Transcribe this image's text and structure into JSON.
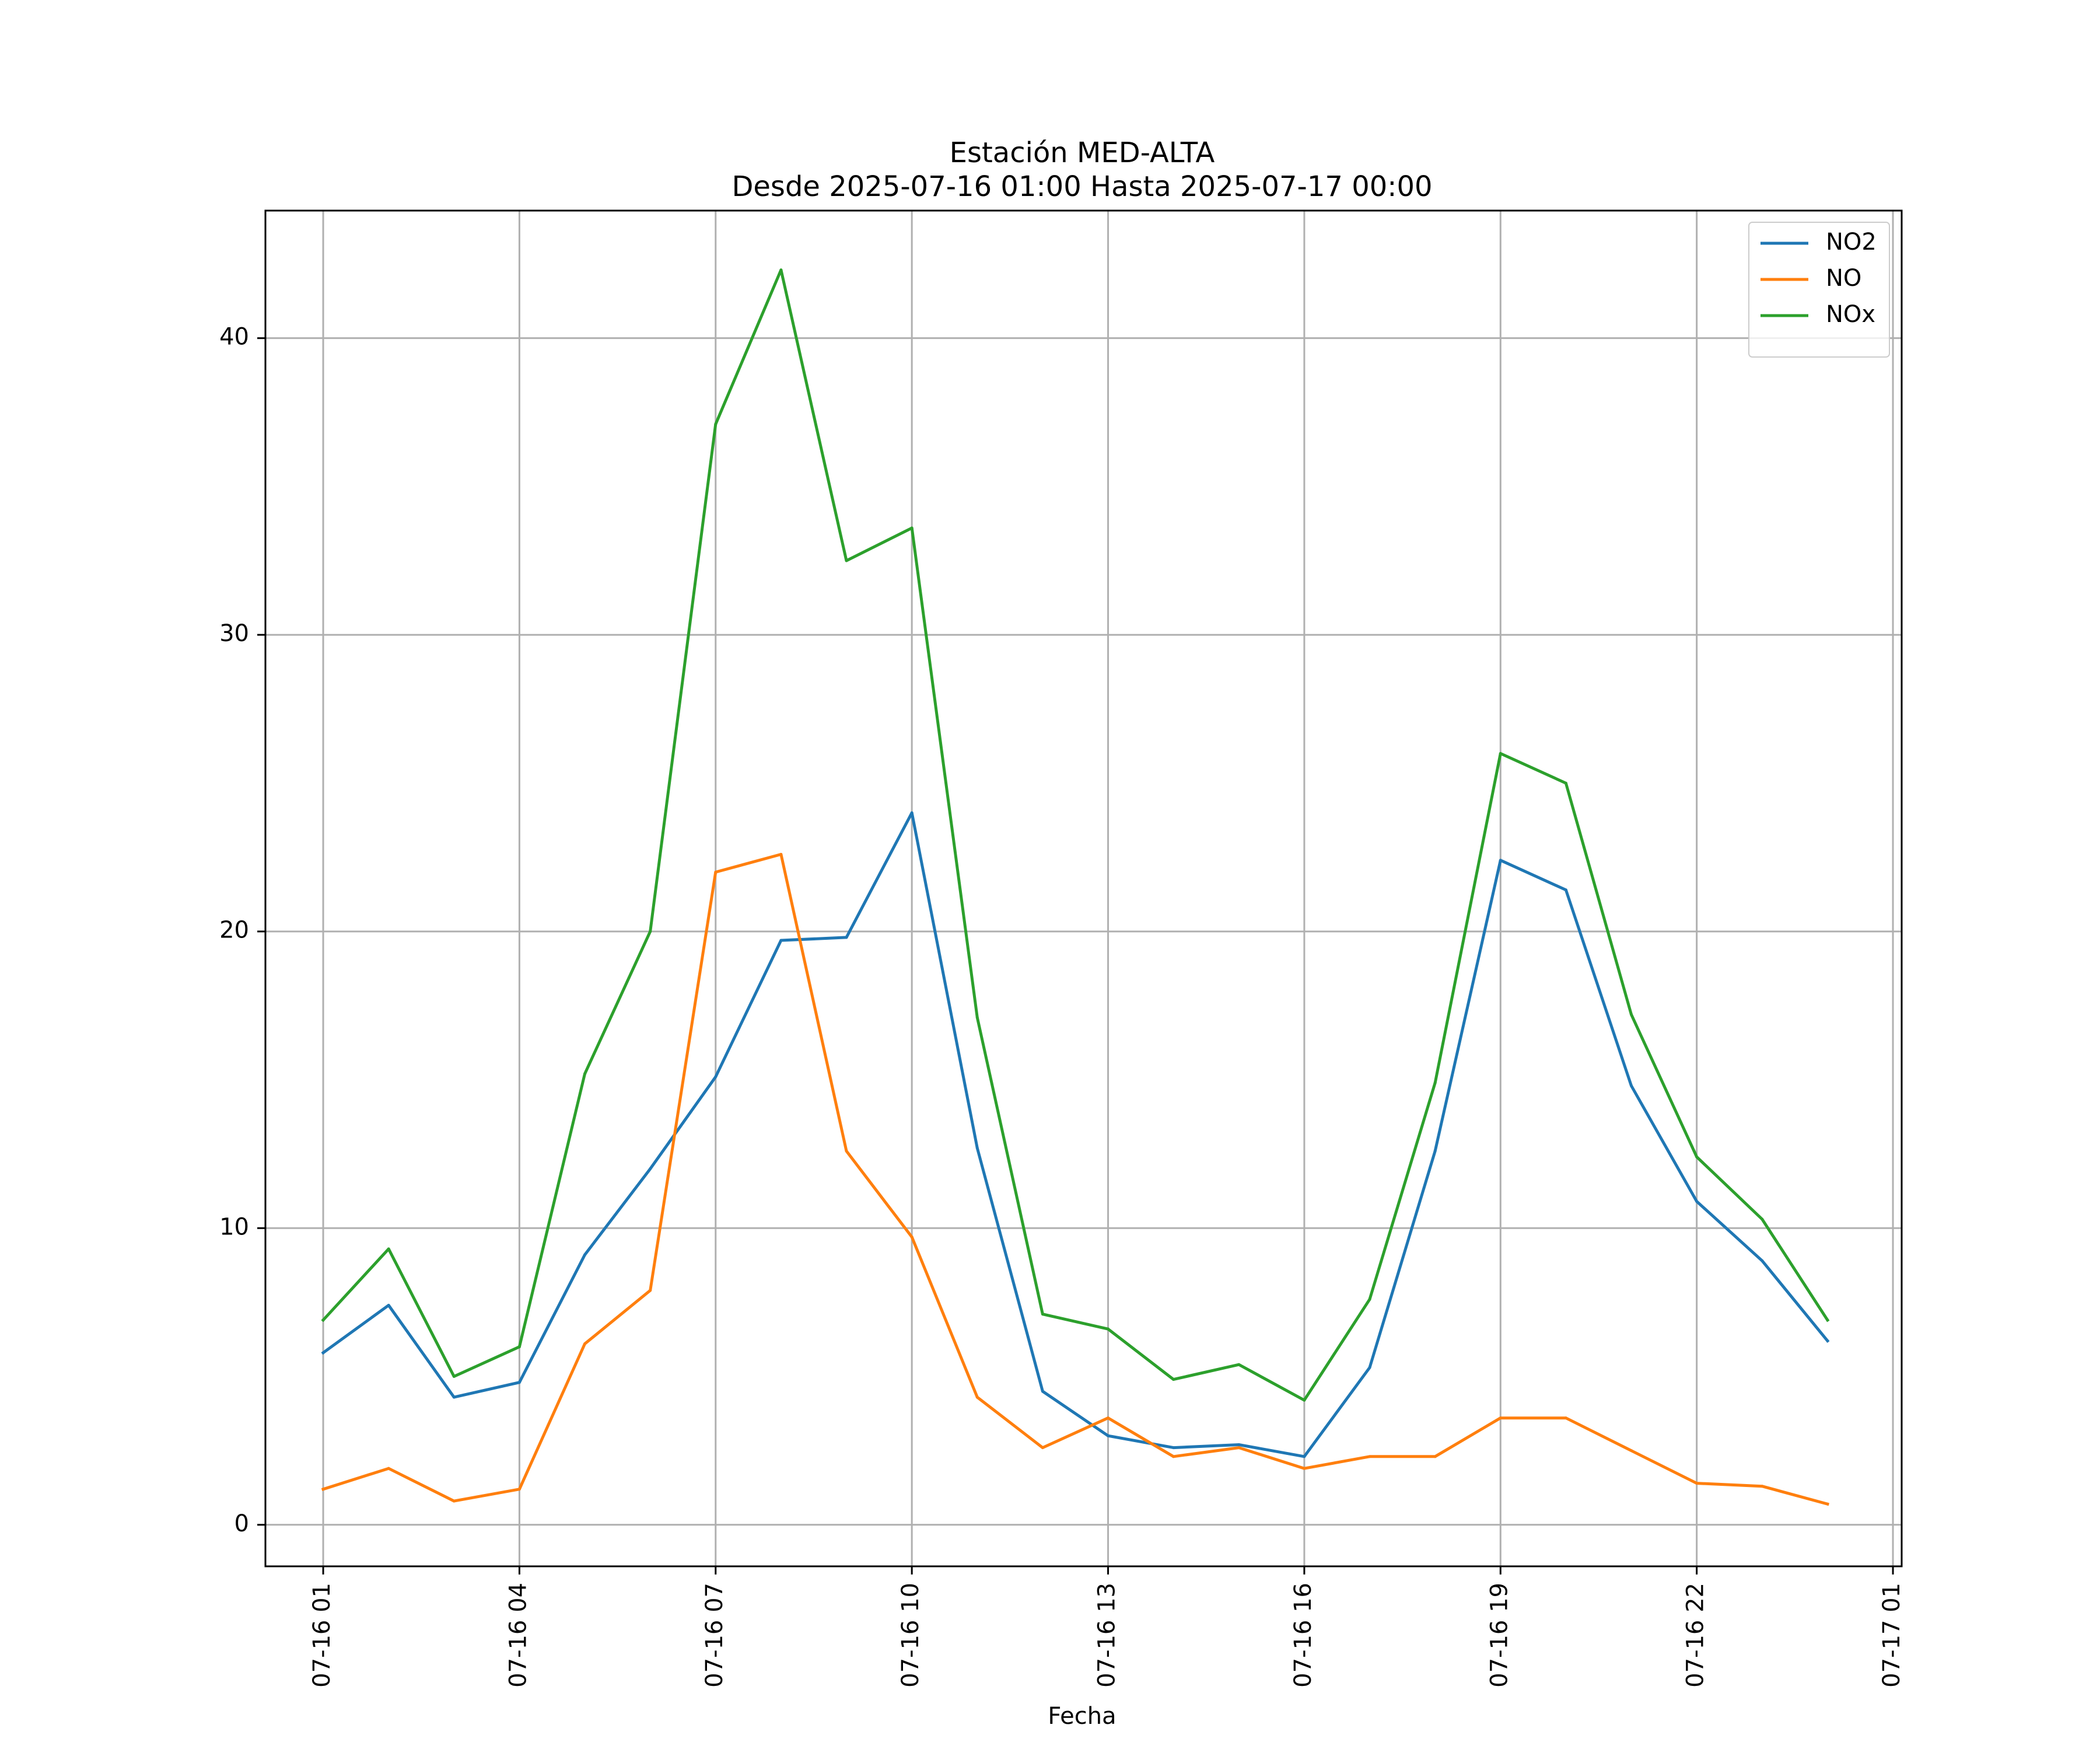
{
  "chart_data": {
    "type": "line",
    "title": "Estación MED-ALTA",
    "subtitle": "Desde 2025-07-16 01:00 Hasta 2025-07-17 00:00",
    "xlabel": "Fecha",
    "ylabel": "",
    "x": [
      "2025-07-16 01:00",
      "2025-07-16 02:00",
      "2025-07-16 03:00",
      "2025-07-16 04:00",
      "2025-07-16 05:00",
      "2025-07-16 06:00",
      "2025-07-16 07:00",
      "2025-07-16 08:00",
      "2025-07-16 09:00",
      "2025-07-16 10:00",
      "2025-07-16 11:00",
      "2025-07-16 12:00",
      "2025-07-16 13:00",
      "2025-07-16 14:00",
      "2025-07-16 15:00",
      "2025-07-16 16:00",
      "2025-07-16 17:00",
      "2025-07-16 18:00",
      "2025-07-16 19:00",
      "2025-07-16 20:00",
      "2025-07-16 21:00",
      "2025-07-16 22:00",
      "2025-07-16 23:00",
      "2025-07-17 00:00"
    ],
    "xlim": [
      "2025-07-16 00:07",
      "2025-07-17 01:08"
    ],
    "xticks": [
      {
        "t": "2025-07-16 01:00",
        "label": "07-16 01"
      },
      {
        "t": "2025-07-16 04:00",
        "label": "07-16 04"
      },
      {
        "t": "2025-07-16 07:00",
        "label": "07-16 07"
      },
      {
        "t": "2025-07-16 10:00",
        "label": "07-16 10"
      },
      {
        "t": "2025-07-16 13:00",
        "label": "07-16 13"
      },
      {
        "t": "2025-07-16 16:00",
        "label": "07-16 16"
      },
      {
        "t": "2025-07-16 19:00",
        "label": "07-16 19"
      },
      {
        "t": "2025-07-16 22:00",
        "label": "07-16 22"
      },
      {
        "t": "2025-07-17 01:00",
        "label": "07-17 01"
      }
    ],
    "ylim": [
      -1.4,
      44.3
    ],
    "yticks": [
      0,
      10,
      20,
      30,
      40
    ],
    "grid": true,
    "legend": "top-right",
    "series": [
      {
        "name": "NO2",
        "color": "#1f77b4",
        "values": [
          5.8,
          7.4,
          4.3,
          4.8,
          9.1,
          12.0,
          15.1,
          19.7,
          19.8,
          24.0,
          12.7,
          4.5,
          3.0,
          2.6,
          2.7,
          2.3,
          5.3,
          12.6,
          22.4,
          21.4,
          14.8,
          10.9,
          8.9,
          6.2
        ]
      },
      {
        "name": "NO",
        "color": "#ff7f0e",
        "values": [
          1.2,
          1.9,
          0.8,
          1.2,
          6.1,
          7.9,
          22.0,
          22.6,
          12.6,
          9.7,
          4.3,
          2.6,
          3.6,
          2.3,
          2.6,
          1.9,
          2.3,
          2.3,
          3.6,
          3.6,
          2.5,
          1.4,
          1.3,
          0.7
        ]
      },
      {
        "name": "NOx",
        "color": "#2ca02c",
        "values": [
          6.9,
          9.3,
          5.0,
          6.0,
          15.2,
          20.0,
          37.1,
          42.3,
          32.5,
          33.6,
          17.1,
          7.1,
          6.6,
          4.9,
          5.4,
          4.2,
          7.6,
          14.9,
          26.0,
          25.0,
          17.2,
          12.4,
          10.3,
          6.9
        ]
      }
    ]
  }
}
